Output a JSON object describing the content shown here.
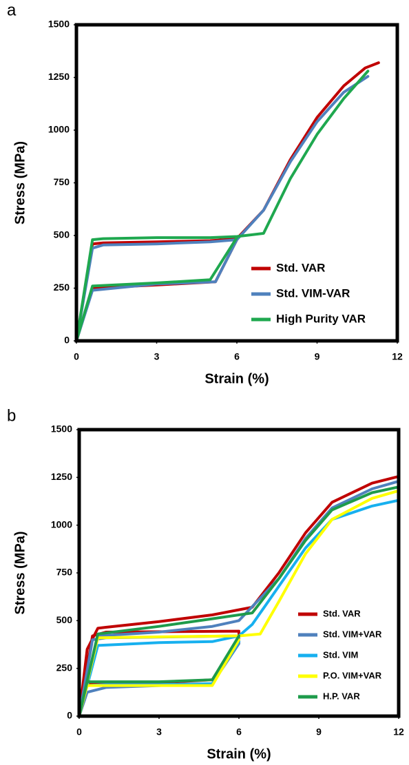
{
  "chart_data": [
    {
      "type": "line",
      "label": "a",
      "x_label": "Strain (%)",
      "y_label": "Stress (MPa)",
      "xlim": [
        0,
        12
      ],
      "ylim": [
        0,
        1500
      ],
      "xticks": [
        0,
        3,
        6,
        9,
        12
      ],
      "yticks": [
        0,
        250,
        500,
        750,
        1000,
        1250,
        1500
      ],
      "legend": "lower right",
      "series": [
        {
          "name": "Std. VAR",
          "color": "#c00000",
          "x": [
            0,
            0.6,
            1,
            3,
            5,
            6,
            7,
            8,
            9,
            10,
            10.8,
            11.3,
            null,
            6,
            5.2,
            3,
            0.6,
            0
          ],
          "values": [
            0,
            460,
            465,
            470,
            475,
            485,
            620,
            860,
            1060,
            1210,
            1295,
            1320,
            null,
            480,
            280,
            265,
            250,
            0
          ]
        },
        {
          "name": "Std. VIM-VAR",
          "color": "#4f81bd",
          "x": [
            0,
            0.6,
            1,
            3,
            5,
            6,
            7,
            8,
            9,
            10,
            10.9,
            null,
            6,
            5.2,
            3,
            0.6,
            0
          ],
          "values": [
            0,
            440,
            455,
            460,
            470,
            480,
            620,
            850,
            1040,
            1180,
            1255,
            null,
            480,
            280,
            270,
            240,
            0
          ]
        },
        {
          "name": "High Purity VAR",
          "color": "#1fa84f",
          "x": [
            0,
            0.6,
            1,
            3,
            5,
            6,
            7,
            8,
            9,
            10,
            10.9,
            null,
            6,
            5,
            3,
            0.6,
            0
          ],
          "values": [
            0,
            480,
            485,
            490,
            490,
            495,
            510,
            770,
            980,
            1150,
            1280,
            null,
            490,
            290,
            275,
            260,
            0
          ]
        }
      ]
    },
    {
      "type": "line",
      "label": "b",
      "x_label": "Strain (%)",
      "y_label": "Stress (MPa)",
      "xlim": [
        0,
        12
      ],
      "ylim": [
        0,
        1500
      ],
      "xticks": [
        0,
        3,
        6,
        9,
        12
      ],
      "yticks": [
        0,
        250,
        500,
        750,
        1000,
        1250,
        1500
      ],
      "legend": "lower right",
      "series": [
        {
          "name": "Std. VAR",
          "color": "#c00000",
          "x": [
            0,
            0.3,
            0.7,
            1,
            3,
            5,
            6.5,
            7.5,
            8.5,
            9.5,
            11,
            12,
            null,
            0,
            0.5,
            1,
            6,
            6,
            5,
            3,
            1,
            0.3,
            0
          ],
          "values": [
            0,
            350,
            460,
            465,
            495,
            530,
            570,
            750,
            960,
            1120,
            1220,
            1255,
            null,
            0,
            420,
            440,
            445,
            400,
            190,
            175,
            175,
            170,
            0
          ]
        },
        {
          "name": "Std. VIM+VAR",
          "color": "#4f81bd",
          "x": [
            0,
            0.7,
            3,
            5,
            6,
            7.5,
            8.5,
            9.5,
            11,
            12,
            null,
            0,
            0.5,
            1,
            6,
            6,
            5,
            3,
            1,
            0.3,
            0
          ],
          "values": [
            0,
            420,
            440,
            470,
            500,
            720,
            930,
            1090,
            1190,
            1230,
            null,
            0,
            400,
            410,
            420,
            380,
            170,
            160,
            150,
            125,
            0
          ]
        },
        {
          "name": "Std. VIM",
          "color": "#17b0ef",
          "x": [
            0,
            0.7,
            3,
            5,
            6,
            6.5,
            7.5,
            8.5,
            9.5,
            11,
            12,
            null,
            6,
            5,
            3,
            1,
            0.3,
            0
          ],
          "values": [
            0,
            370,
            385,
            390,
            420,
            480,
            680,
            880,
            1030,
            1100,
            1130,
            null,
            390,
            170,
            165,
            165,
            160,
            0
          ]
        },
        {
          "name": "P.O. VIM+VAR",
          "color": "#ffff00",
          "x": [
            0,
            0.7,
            3,
            6,
            6.8,
            7.5,
            8.5,
            9.5,
            11,
            12,
            null,
            6,
            5,
            3,
            0.3,
            0
          ],
          "values": [
            0,
            410,
            415,
            420,
            430,
            600,
            850,
            1030,
            1140,
            1180,
            null,
            400,
            160,
            160,
            160,
            0
          ]
        },
        {
          "name": "H.P. VAR",
          "color": "#1e9b4b",
          "x": [
            0,
            0.7,
            3,
            5,
            6.5,
            7.5,
            8.5,
            9.5,
            11,
            12,
            null,
            6,
            5,
            3,
            0.3,
            0
          ],
          "values": [
            0,
            430,
            470,
            510,
            540,
            720,
            920,
            1080,
            1170,
            1200,
            null,
            420,
            190,
            180,
            180,
            0
          ]
        }
      ]
    }
  ]
}
